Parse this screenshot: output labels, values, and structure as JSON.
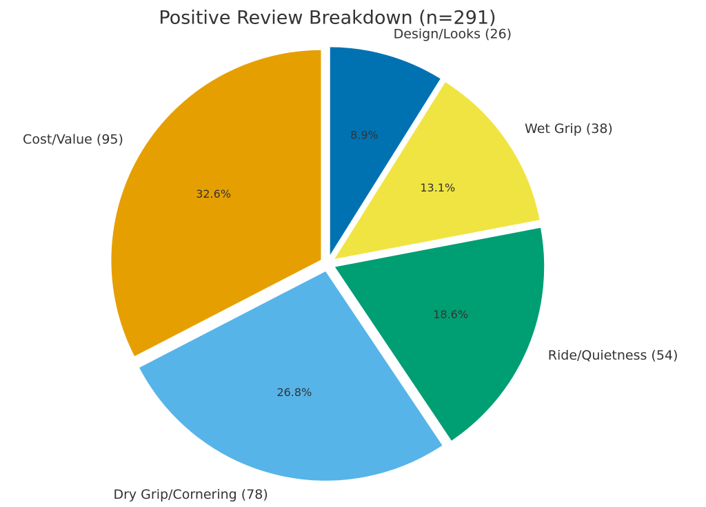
{
  "chart_data": {
    "type": "pie",
    "title": "Positive Review Breakdown (n=291)",
    "categories": [
      "Design/Looks (26)",
      "Wet Grip (38)",
      "Ride/Quietness (54)",
      "Dry Grip/Cornering (78)",
      "Cost/Value (95)"
    ],
    "values": [
      8.9,
      13.1,
      18.6,
      26.8,
      32.6
    ],
    "value_labels": [
      "8.9%",
      "13.1%",
      "18.6%",
      "26.8%",
      "32.6%"
    ],
    "colors": [
      "#0072b2",
      "#f0e442",
      "#009e73",
      "#56b4e9",
      "#e69f00"
    ]
  }
}
